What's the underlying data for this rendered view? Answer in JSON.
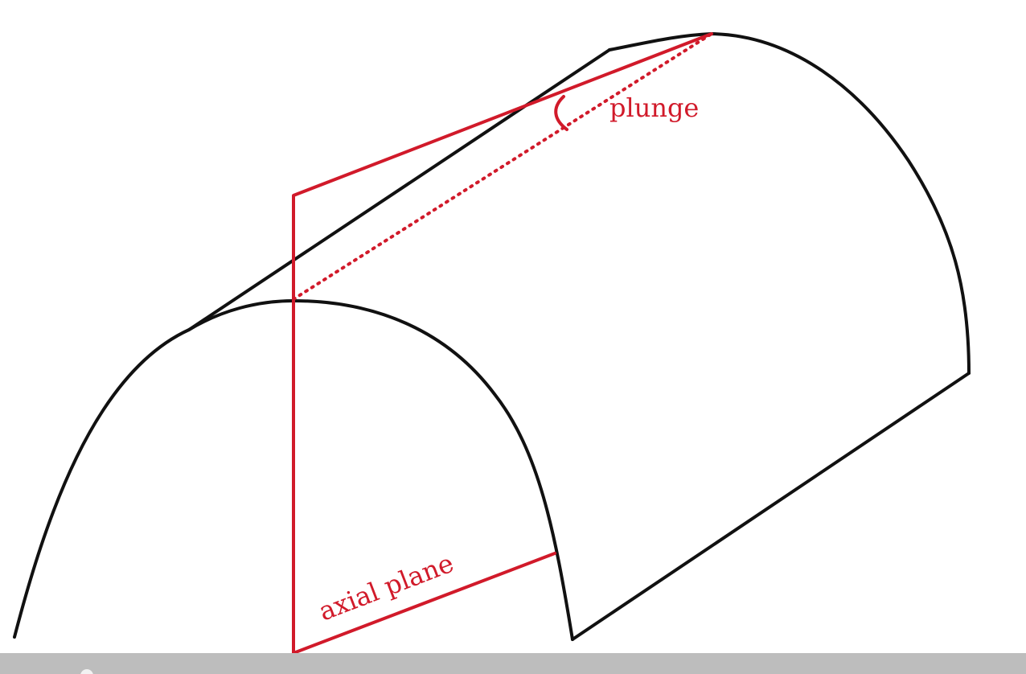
{
  "labels": {
    "plunge": "plunge",
    "axial_plane": "axial plane"
  },
  "colors": {
    "fold_outline": "#111111",
    "axial_plane": "#d11a2a",
    "bottom_bar": "#bdbdbd"
  }
}
